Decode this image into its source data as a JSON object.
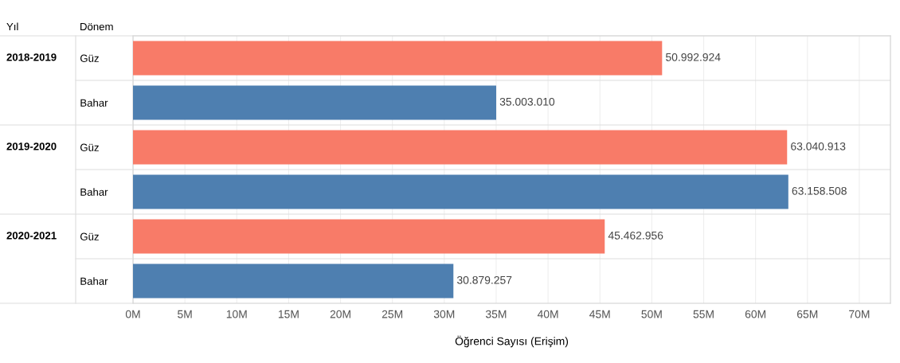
{
  "chart_data": {
    "type": "bar",
    "orientation": "horizontal",
    "categories": [
      "Güz",
      "Bahar",
      "Güz",
      "Bahar",
      "Güz",
      "Bahar"
    ],
    "values": [
      50992924,
      35003010,
      63040913,
      63158508,
      45462956,
      30879257
    ],
    "colors": [
      "#f87b68",
      "#4e7fb0",
      "#f87b68",
      "#4e7fb0",
      "#f87b68",
      "#4e7fb0"
    ],
    "value_labels": [
      "50.992.924",
      "35.003.010",
      "63.040.913",
      "63.158.508",
      "45.462.956",
      "30.879.257"
    ],
    "xlabel": "Öğrenci Sayısı (Erişim)",
    "annotations": [
      "Yıl",
      "Dönem",
      "2018-2019",
      "2019-2020",
      "2020-2021"
    ],
    "xlim": [
      0,
      73000000
    ],
    "xticks": [
      {
        "value": 0,
        "label": "0M"
      },
      {
        "value": 5000000,
        "label": "5M"
      },
      {
        "value": 10000000,
        "label": "10M"
      },
      {
        "value": 15000000,
        "label": "15M"
      },
      {
        "value": 20000000,
        "label": "20M"
      },
      {
        "value": 25000000,
        "label": "25M"
      },
      {
        "value": 30000000,
        "label": "30M"
      },
      {
        "value": 35000000,
        "label": "35M"
      },
      {
        "value": 40000000,
        "label": "40M"
      },
      {
        "value": 45000000,
        "label": "45M"
      },
      {
        "value": 50000000,
        "label": "50M"
      },
      {
        "value": 55000000,
        "label": "55M"
      },
      {
        "value": 60000000,
        "label": "60M"
      },
      {
        "value": 65000000,
        "label": "65M"
      },
      {
        "value": 70000000,
        "label": "70M"
      }
    ],
    "grid": "x"
  }
}
